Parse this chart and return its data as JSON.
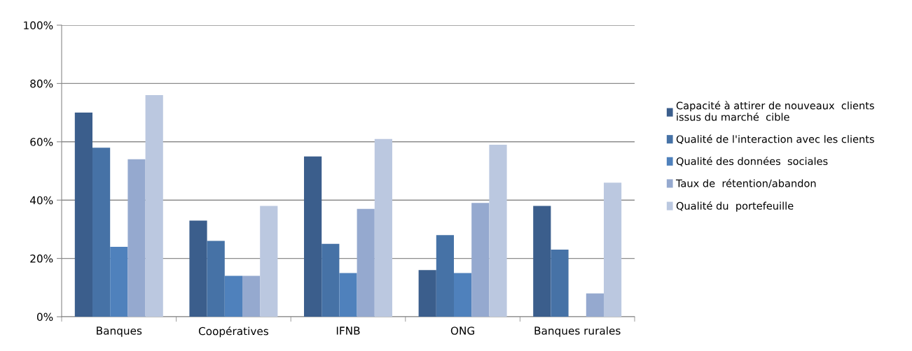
{
  "chart_data": {
    "type": "bar",
    "categories": [
      "Banques",
      "Coopératives",
      "IFNB",
      "ONG",
      "Banques rurales"
    ],
    "series": [
      {
        "name": "Capacité à attirer de nouveaux  clients\nissus du marché  cible",
        "color": "#3b5e8c",
        "values": [
          70,
          33,
          55,
          16,
          38
        ]
      },
      {
        "name": "Qualité de l'interaction avec les clients",
        "color": "#4672a6",
        "values": [
          58,
          26,
          25,
          28,
          23
        ]
      },
      {
        "name": "Qualité des données  sociales",
        "color": "#4f81bc",
        "values": [
          24,
          14,
          15,
          15,
          null
        ]
      },
      {
        "name": "Taux de  rétention/abandon",
        "color": "#95a9cf",
        "values": [
          54,
          14,
          37,
          39,
          8
        ]
      },
      {
        "name": "Qualité du  portefeuille",
        "color": "#bbc8e0",
        "values": [
          76,
          38,
          61,
          59,
          46
        ]
      }
    ],
    "ylim": [
      0,
      100
    ],
    "yticks": [
      {
        "value": 0,
        "label": "0%"
      },
      {
        "value": 20,
        "label": "20%"
      },
      {
        "value": 40,
        "label": "40%"
      },
      {
        "value": 60,
        "label": "60%"
      },
      {
        "value": 80,
        "label": "80%"
      },
      {
        "value": 100,
        "label": "100%"
      }
    ],
    "grid": "y",
    "legend": "right"
  }
}
